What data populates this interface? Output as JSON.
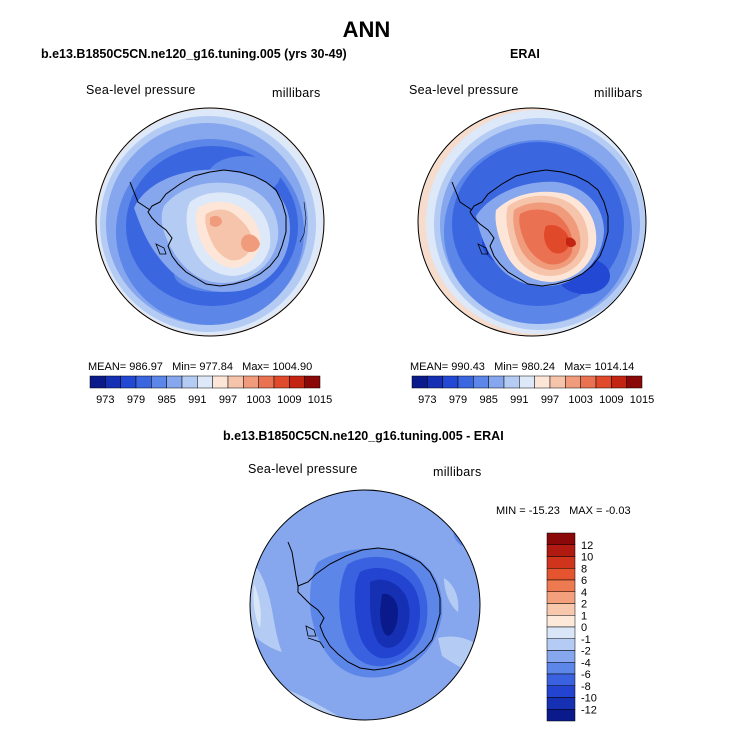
{
  "figure": {
    "main_title": "ANN",
    "panels": [
      {
        "title": "b.e13.B1850C5CN.ne120_g16.tuning.005 (yrs 30-49)",
        "variable_label": "Sea-level pressure",
        "units_label": "millibars",
        "stats": {
          "mean_label": "MEAN=",
          "mean": "986.97",
          "min_label": "Min=",
          "min": "977.84",
          "max_label": "Max=",
          "max": "1004.90"
        }
      },
      {
        "title": "ERAI",
        "variable_label": "Sea-level pressure",
        "units_label": "millibars",
        "stats": {
          "mean_label": "MEAN=",
          "mean": "990.43",
          "min_label": "Min=",
          "min": "980.24",
          "max_label": "Max=",
          "max": "1014.14"
        }
      },
      {
        "title": "b.e13.B1850C5CN.ne120_g16.tuning.005 - ERAI",
        "variable_label": "Sea-level pressure",
        "units_label": "millibars",
        "stats": {
          "min_label": "MIN =",
          "min": "-15.23",
          "max_label": "MAX =",
          "max": "-0.03"
        }
      }
    ]
  },
  "colorbars": {
    "absolute": {
      "colors": [
        "#0a1a8a",
        "#1630b4",
        "#2248d4",
        "#3a66e0",
        "#5c86e8",
        "#86a6ee",
        "#b4cbf4",
        "#dde8f8",
        "#fde6d8",
        "#f6c4aa",
        "#f09c7c",
        "#ea7252",
        "#e04a2a",
        "#c42412",
        "#8a0808"
      ],
      "tick_labels": [
        "973",
        "979",
        "985",
        "991",
        "997",
        "1003",
        "1009",
        "1015"
      ]
    },
    "difference": {
      "colors_top_to_bottom": [
        "#8a0808",
        "#b01a10",
        "#d0341c",
        "#e4542e",
        "#ee7a52",
        "#f4a07c",
        "#f8c8ac",
        "#fde9da",
        "#d8e6f8",
        "#b4ccf4",
        "#86a6ee",
        "#5c86e8",
        "#3a62e0",
        "#2244d0",
        "#1630b4",
        "#0a1a8a"
      ],
      "tick_labels": [
        "12",
        "10",
        "8",
        "6",
        "4",
        "2",
        "1",
        "0",
        "-1",
        "-2",
        "-4",
        "-6",
        "-8",
        "-10",
        "-12"
      ]
    }
  }
}
